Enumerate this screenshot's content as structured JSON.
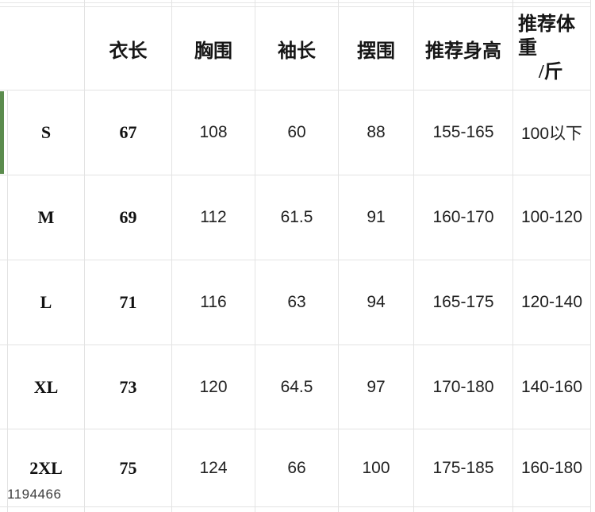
{
  "accent_green": "#5b8c4d",
  "grid_line_color": "#e3e3e3",
  "watermark": "1194466",
  "table": {
    "corner": "",
    "columns": [
      "衣长",
      "胸围",
      "袖长",
      "摆围",
      "推荐身高"
    ],
    "weight_header": {
      "label": "推荐体重",
      "unit": "/斤"
    },
    "rows": [
      {
        "size": "S",
        "values": [
          "67",
          "108",
          "60",
          "88",
          "155-165",
          "100以下"
        ]
      },
      {
        "size": "M",
        "values": [
          "69",
          "112",
          "61.5",
          "91",
          "160-170",
          "100-120"
        ]
      },
      {
        "size": "L",
        "values": [
          "71",
          "116",
          "63",
          "94",
          "165-175",
          "120-140"
        ]
      },
      {
        "size": "XL",
        "values": [
          "73",
          "120",
          "64.5",
          "97",
          "170-180",
          "140-160"
        ]
      },
      {
        "size": "2XL",
        "values": [
          "75",
          "124",
          "66",
          "100",
          "175-185",
          "160-180"
        ]
      }
    ]
  }
}
